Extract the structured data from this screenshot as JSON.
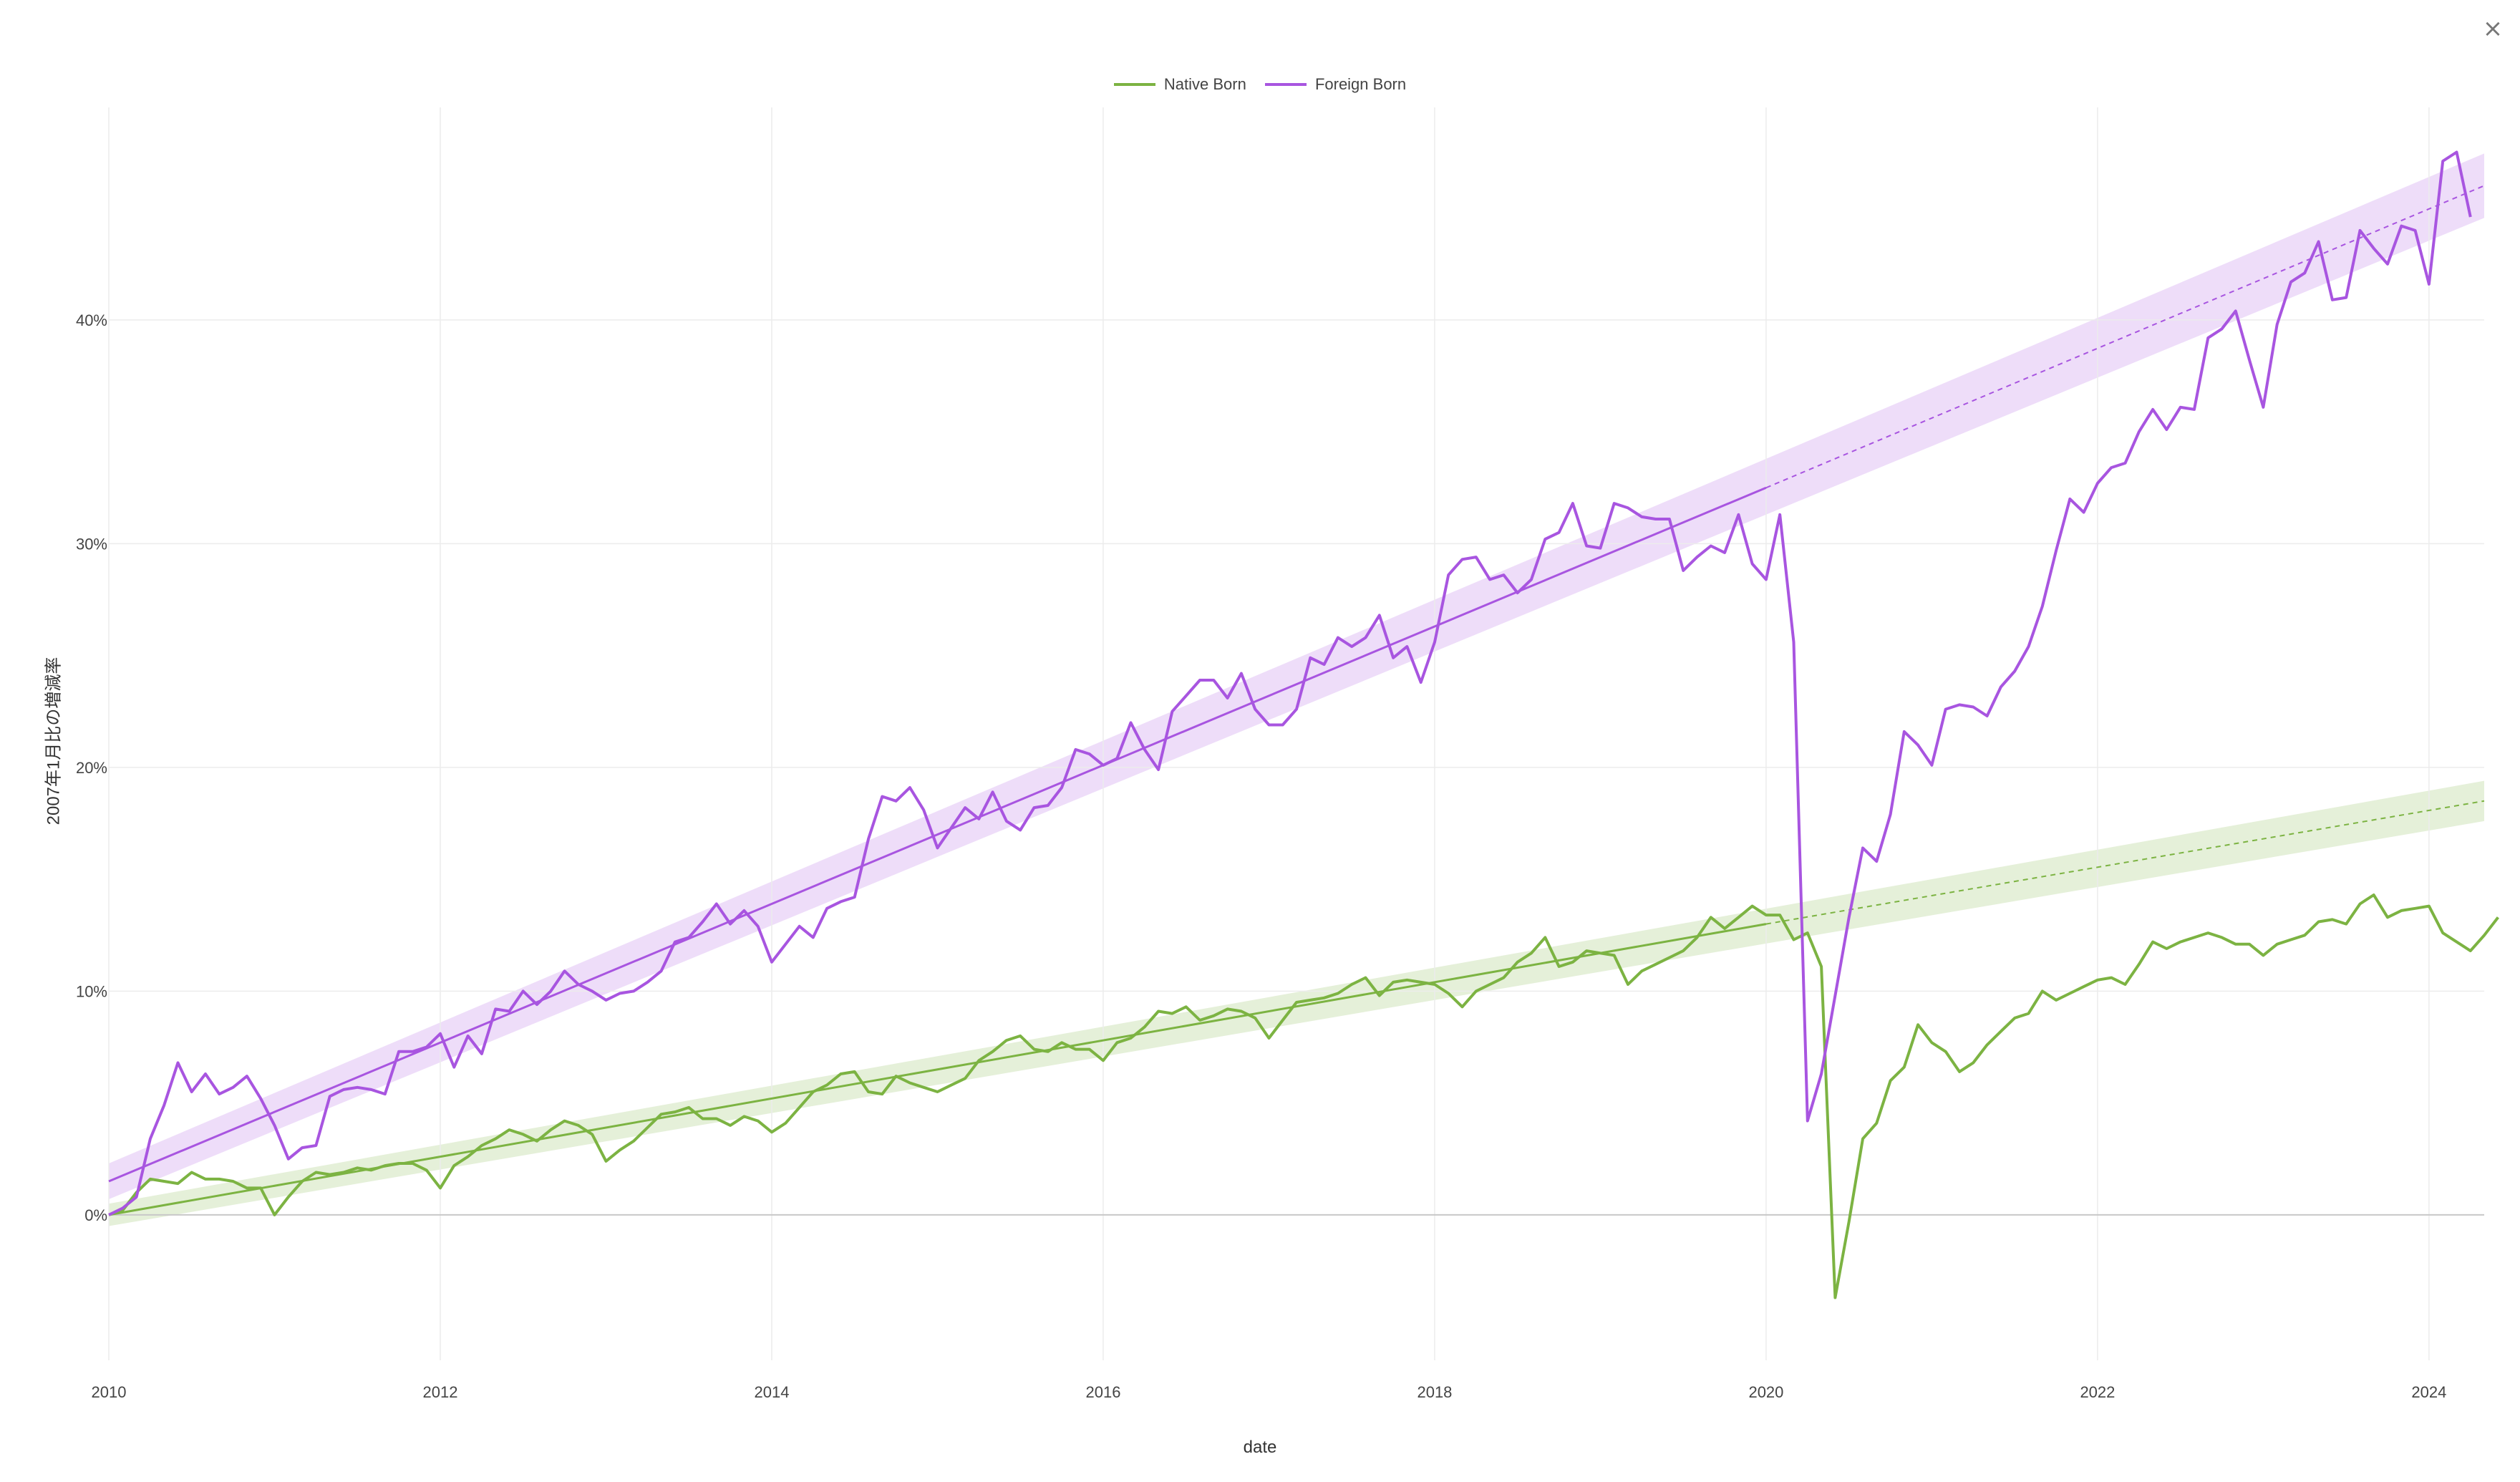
{
  "window": {
    "close_label": "×"
  },
  "legend": {
    "items": [
      {
        "label": "Native Born",
        "color": "#7cb342"
      },
      {
        "label": "Foreign Born",
        "color": "#a855e0"
      }
    ]
  },
  "chart_data": {
    "type": "line",
    "xlabel": "date",
    "ylabel": "2007年1月比の増減率",
    "xlim": [
      2010.0,
      2024.333
    ],
    "ylim": [
      -0.065,
      0.495
    ],
    "x_ticks": [
      {
        "value": 2010,
        "label": "2010"
      },
      {
        "value": 2012,
        "label": "2012"
      },
      {
        "value": 2014,
        "label": "2014"
      },
      {
        "value": 2016,
        "label": "2016"
      },
      {
        "value": 2018,
        "label": "2018"
      },
      {
        "value": 2020,
        "label": "2020"
      },
      {
        "value": 2022,
        "label": "2022"
      },
      {
        "value": 2024,
        "label": "2024"
      }
    ],
    "y_ticks": [
      {
        "value": 0.0,
        "label": "0%"
      },
      {
        "value": 0.1,
        "label": "10%"
      },
      {
        "value": 0.2,
        "label": "20%"
      },
      {
        "value": 0.3,
        "label": "30%"
      },
      {
        "value": 0.4,
        "label": "40%"
      }
    ],
    "grid": true,
    "legend_position": "top-center",
    "x_start": "2010-01",
    "x_step": "1 month",
    "series": [
      {
        "name": "Native Born",
        "color": "#7cb342",
        "values": [
          0.0,
          0.002,
          0.01,
          0.016,
          0.015,
          0.014,
          0.019,
          0.016,
          0.016,
          0.015,
          0.012,
          0.012,
          0.0,
          0.008,
          0.015,
          0.019,
          0.018,
          0.019,
          0.021,
          0.02,
          0.022,
          0.023,
          0.023,
          0.02,
          0.012,
          0.022,
          0.026,
          0.031,
          0.034,
          0.038,
          0.036,
          0.033,
          0.038,
          0.042,
          0.04,
          0.036,
          0.024,
          0.029,
          0.033,
          0.039,
          0.045,
          0.046,
          0.048,
          0.043,
          0.043,
          0.04,
          0.044,
          0.042,
          0.037,
          0.041,
          0.048,
          0.055,
          0.058,
          0.063,
          0.064,
          0.055,
          0.054,
          0.062,
          0.059,
          0.057,
          0.055,
          0.058,
          0.061,
          0.069,
          0.073,
          0.078,
          0.08,
          0.074,
          0.073,
          0.077,
          0.074,
          0.074,
          0.069,
          0.077,
          0.079,
          0.084,
          0.091,
          0.09,
          0.093,
          0.087,
          0.089,
          0.092,
          0.091,
          0.088,
          0.079,
          0.087,
          0.095,
          0.096,
          0.097,
          0.099,
          0.103,
          0.106,
          0.098,
          0.104,
          0.105,
          0.104,
          0.103,
          0.099,
          0.093,
          0.1,
          0.103,
          0.106,
          0.113,
          0.117,
          0.124,
          0.111,
          0.113,
          0.118,
          0.117,
          0.116,
          0.103,
          0.109,
          0.112,
          0.115,
          0.118,
          0.124,
          0.133,
          0.128,
          0.133,
          0.138,
          0.134,
          0.134,
          0.123,
          0.126,
          0.111,
          -0.037,
          -0.003,
          0.034,
          0.041,
          0.06,
          0.066,
          0.085,
          0.077,
          0.073,
          0.064,
          0.068,
          0.076,
          0.082,
          0.088,
          0.09,
          0.1,
          0.096,
          0.099,
          0.102,
          0.105,
          0.106,
          0.103,
          0.112,
          0.122,
          0.119,
          0.122,
          0.124,
          0.126,
          0.124,
          0.121,
          0.121,
          0.116,
          0.121,
          0.123,
          0.125,
          0.131,
          0.132,
          0.13,
          0.139,
          0.143,
          0.133,
          0.136,
          0.137,
          0.138,
          0.126,
          0.122,
          0.118,
          0.125,
          0.133
        ]
      },
      {
        "name": "Foreign Born",
        "color": "#a855e0",
        "values": [
          0.0,
          0.003,
          0.008,
          0.034,
          0.049,
          0.068,
          0.055,
          0.063,
          0.054,
          0.057,
          0.062,
          0.052,
          0.04,
          0.025,
          0.03,
          0.031,
          0.053,
          0.056,
          0.057,
          0.056,
          0.054,
          0.073,
          0.073,
          0.075,
          0.081,
          0.066,
          0.08,
          0.072,
          0.092,
          0.091,
          0.1,
          0.094,
          0.1,
          0.109,
          0.103,
          0.1,
          0.096,
          0.099,
          0.1,
          0.104,
          0.109,
          0.122,
          0.124,
          0.131,
          0.139,
          0.13,
          0.136,
          0.129,
          0.113,
          0.121,
          0.129,
          0.124,
          0.137,
          0.14,
          0.142,
          0.168,
          0.187,
          0.185,
          0.191,
          0.181,
          0.164,
          0.173,
          0.182,
          0.177,
          0.189,
          0.176,
          0.172,
          0.182,
          0.183,
          0.191,
          0.208,
          0.206,
          0.201,
          0.204,
          0.22,
          0.208,
          0.199,
          0.225,
          0.232,
          0.239,
          0.239,
          0.231,
          0.242,
          0.226,
          0.219,
          0.219,
          0.226,
          0.249,
          0.246,
          0.258,
          0.254,
          0.258,
          0.268,
          0.249,
          0.254,
          0.238,
          0.256,
          0.286,
          0.293,
          0.294,
          0.284,
          0.286,
          0.278,
          0.284,
          0.302,
          0.305,
          0.318,
          0.299,
          0.298,
          0.318,
          0.316,
          0.312,
          0.311,
          0.311,
          0.288,
          0.294,
          0.299,
          0.296,
          0.313,
          0.291,
          0.284,
          0.313,
          0.256,
          0.042,
          0.063,
          0.098,
          0.133,
          0.164,
          0.158,
          0.179,
          0.216,
          0.21,
          0.201,
          0.226,
          0.228,
          0.227,
          0.223,
          0.236,
          0.243,
          0.254,
          0.272,
          0.297,
          0.32,
          0.314,
          0.327,
          0.334,
          0.336,
          0.35,
          0.36,
          0.351,
          0.361,
          0.36,
          0.392,
          0.396,
          0.404,
          0.382,
          0.361,
          0.398,
          0.417,
          0.421,
          0.435,
          0.409,
          0.41,
          0.44,
          0.432,
          0.425,
          0.442,
          0.44,
          0.416,
          0.471,
          0.475,
          0.446
        ]
      }
    ],
    "trend_lines": [
      {
        "series": "Native Born",
        "fit_x": [
          2010.0,
          2020.0
        ],
        "fit_y": [
          0.0,
          0.13
        ],
        "projection_x": [
          2020.0,
          2024.333
        ],
        "projection_y": [
          0.13,
          0.185
        ],
        "band_width": 0.005
      },
      {
        "series": "Foreign Born",
        "fit_x": [
          2010.0,
          2020.0
        ],
        "fit_y": [
          0.015,
          0.325
        ],
        "projection_x": [
          2020.0,
          2024.333
        ],
        "projection_y": [
          0.325,
          0.46
        ],
        "band_width": 0.008
      }
    ]
  }
}
